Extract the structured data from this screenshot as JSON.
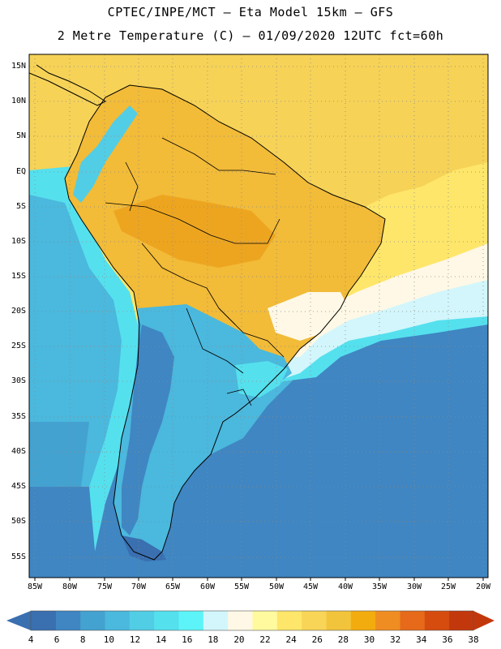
{
  "title_line1": "CPTEC/INPE/MCT –  Eta Model 15km – GFS",
  "title_line2": "2 Metre Temperature (C) – 01/09/2020 12UTC fct=60h",
  "lat_labels": [
    "15N",
    "10N",
    "5N",
    "EQ",
    "5S",
    "10S",
    "15S",
    "20S",
    "25S",
    "30S",
    "35S",
    "40S",
    "45S",
    "50S",
    "55S"
  ],
  "lon_labels": [
    "85W",
    "80W",
    "75W",
    "70W",
    "65W",
    "60W",
    "55W",
    "50W",
    "45W",
    "40W",
    "35W",
    "30W",
    "25W",
    "20W"
  ],
  "colorbar": {
    "labels": [
      "4",
      "6",
      "8",
      "10",
      "12",
      "14",
      "16",
      "18",
      "20",
      "22",
      "24",
      "26",
      "28",
      "30",
      "32",
      "34",
      "36",
      "38"
    ],
    "colors": [
      "#3a6fb0",
      "#3f86c2",
      "#44a2d0",
      "#4bb8dd",
      "#52cde6",
      "#55e0ee",
      "#5cf4f8",
      "#d2f6fb",
      "#fff8e6",
      "#fffa9e",
      "#fee66a",
      "#f8d557",
      "#f2c43c",
      "#f3ac0e",
      "#ef8c22",
      "#e66a1a",
      "#d54c0e",
      "#c2380c"
    ]
  },
  "legend_under_color": "#3a6fb0",
  "legend_over_color": "#c2380c",
  "map": {
    "ocean_north_color": "#f6d257",
    "land_warm_color": "#f2bb38",
    "land_hot_color": "#eda520",
    "south_atlantic_near_color": "#52cde6",
    "south_atlantic_far_color": "#3f86c2",
    "pacific_color": "#44a2d0"
  }
}
